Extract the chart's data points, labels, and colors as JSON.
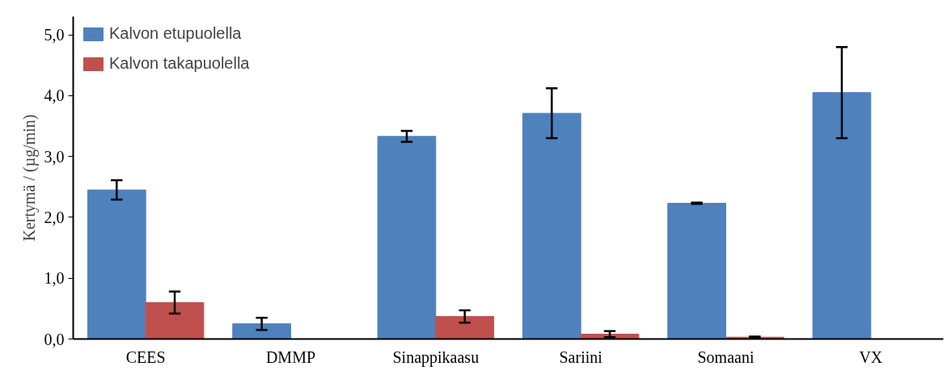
{
  "chart_data": {
    "type": "bar",
    "ylabel": "Kertymä / (µg/min)",
    "categories": [
      "CEES",
      "DMMP",
      "Sinappikaasu",
      "Sariini",
      "Somaani",
      "VX"
    ],
    "series": [
      {
        "name": "Kalvon etupuolella",
        "color": "#4f81bd",
        "values": [
          2.45,
          0.25,
          3.33,
          3.71,
          2.23,
          4.05
        ],
        "errors": [
          0.16,
          0.1,
          0.09,
          0.41,
          0.01,
          0.75
        ]
      },
      {
        "name": "Kalvon takapuolella",
        "color": "#c0504d",
        "values": [
          0.6,
          null,
          0.37,
          0.08,
          0.03,
          null
        ],
        "errors": [
          0.18,
          null,
          0.1,
          [
            0.03,
            0.13
          ],
          0.01,
          null
        ]
      }
    ],
    "ylim": [
      0,
      5.3
    ],
    "yticks": [
      {
        "value": 0,
        "label": "0,0"
      },
      {
        "value": 1,
        "label": "1,0"
      },
      {
        "value": 2,
        "label": "2,0"
      },
      {
        "value": 3,
        "label": "3,0"
      },
      {
        "value": 4,
        "label": "4,0"
      },
      {
        "value": 5,
        "label": "5,0"
      }
    ],
    "grid": false,
    "legend": "top left"
  }
}
